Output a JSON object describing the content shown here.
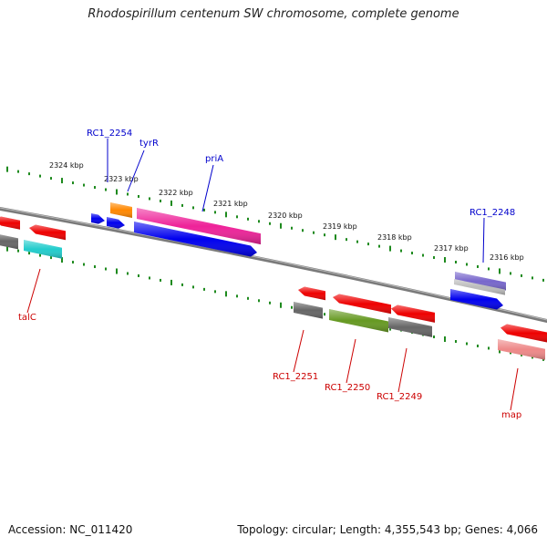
{
  "title": "Rhodospirillum centenum SW chromosome, complete genome",
  "footer": {
    "accession": "Accession: NC_011420",
    "summary": "Topology: circular; Length: 4,355,543 bp; Genes: 4,066"
  },
  "colors": {
    "backbone": "#7a7a7a",
    "tick": "#1e8a1e",
    "label_forward": "#0000cc",
    "label_reverse": "#cc0000"
  },
  "ticks": [
    {
      "label": "2324 kbp"
    },
    {
      "label": "2323 kbp"
    },
    {
      "label": "2322 kbp"
    },
    {
      "label": "2321 kbp"
    },
    {
      "label": "2320 kbp"
    },
    {
      "label": "2319 kbp"
    },
    {
      "label": "2318 kbp"
    },
    {
      "label": "2317 kbp"
    },
    {
      "label": "2316 kbp"
    }
  ],
  "features": [
    {
      "color": "#ee0000",
      "strand": "reverse"
    },
    {
      "color": "#ee0000",
      "strand": "reverse"
    },
    {
      "color": "#666666",
      "strand": "none"
    },
    {
      "color": "#22cccc",
      "strand": "none"
    },
    {
      "color": "#0000ee",
      "strand": "forward"
    },
    {
      "color": "#0000ee",
      "strand": "forward"
    },
    {
      "color": "#ff8800",
      "strand": "none"
    },
    {
      "color": "#ee2299",
      "strand": "none"
    },
    {
      "color": "#0000ee",
      "strand": "forward"
    },
    {
      "color": "#7766cc",
      "strand": "none"
    },
    {
      "color": "#bbbbbb",
      "strand": "none"
    },
    {
      "color": "#0000ee",
      "strand": "forward"
    },
    {
      "color": "#ee0000",
      "strand": "reverse"
    },
    {
      "color": "#ee0000",
      "strand": "reverse"
    },
    {
      "color": "#ee0000",
      "strand": "reverse"
    },
    {
      "color": "#666666",
      "strand": "none"
    },
    {
      "color": "#669922",
      "strand": "none"
    },
    {
      "color": "#666666",
      "strand": "none"
    },
    {
      "color": "#ee0000",
      "strand": "reverse"
    },
    {
      "color": "#ee8888",
      "strand": "none"
    }
  ],
  "labels": [
    {
      "text": "RC1_2254",
      "color": "#0000cc"
    },
    {
      "text": "tyrR",
      "color": "#0000cc"
    },
    {
      "text": "priA",
      "color": "#0000cc"
    },
    {
      "text": "RC1_2248",
      "color": "#0000cc"
    },
    {
      "text": "talC",
      "color": "#cc0000"
    },
    {
      "text": "RC1_2251",
      "color": "#cc0000"
    },
    {
      "text": "RC1_2250",
      "color": "#cc0000"
    },
    {
      "text": "RC1_2249",
      "color": "#cc0000"
    },
    {
      "text": "map",
      "color": "#cc0000"
    }
  ]
}
